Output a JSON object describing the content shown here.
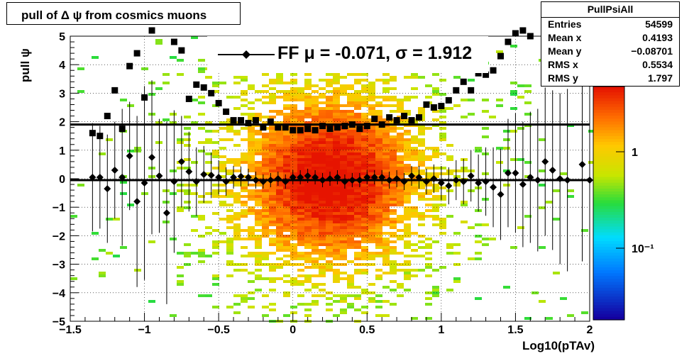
{
  "title": "pull of Δ ψ from cosmics muons",
  "stats": {
    "name": "PullPsiAll",
    "rows": [
      {
        "key": "Entries",
        "value": "54599"
      },
      {
        "key": "Mean x",
        "value": "0.4193"
      },
      {
        "key": "Mean y",
        "value": "−0.08701"
      },
      {
        "key": "RMS x",
        "value": "0.5534"
      },
      {
        "key": "RMS y",
        "value": "1.797"
      }
    ]
  },
  "legend": {
    "text": "FF μ = -0.071, σ =   1.912"
  },
  "axis": {
    "xlabel": "Log10(pTAv)",
    "ylabel": "pull ψ"
  },
  "colors": {
    "background": "#ffffff",
    "markers": "#000000"
  },
  "chart_data": {
    "type": "scatter",
    "xlim": [
      -1.5,
      2
    ],
    "ylim": [
      -5,
      5
    ],
    "x_ticks": [
      "−1.5",
      "−1",
      "−0.5",
      "0",
      "0.5",
      "1",
      "1.5",
      "2"
    ],
    "y_ticks": [
      "−5",
      "−4",
      "−3",
      "−2",
      "−1",
      "0",
      "1",
      "2",
      "3",
      "4",
      "5"
    ],
    "colorbar": {
      "scale": "log",
      "labels": [
        "1",
        "10⁻¹"
      ],
      "palette": "rainbow"
    },
    "background": "2D histogram PullPsiAll (pull ψ vs log10 pT), log color scale",
    "series": [
      {
        "marker": "diamond",
        "x": [
          -1.35,
          -1.3,
          -1.25,
          -1.2,
          -1.15,
          -1.1,
          -1.05,
          -1.0,
          -0.95,
          -0.9,
          -0.85,
          -0.8,
          -0.75,
          -0.7,
          -0.65,
          -0.6,
          -0.55,
          -0.5,
          -0.45,
          -0.4,
          -0.35,
          -0.3,
          -0.25,
          -0.2,
          -0.15,
          -0.1,
          -0.05,
          0.0,
          0.05,
          0.1,
          0.15,
          0.2,
          0.25,
          0.3,
          0.35,
          0.4,
          0.45,
          0.5,
          0.55,
          0.6,
          0.65,
          0.7,
          0.75,
          0.8,
          0.85,
          0.9,
          0.95,
          1.0,
          1.05,
          1.1,
          1.15,
          1.2,
          1.25,
          1.3,
          1.35,
          1.4,
          1.45,
          1.5,
          1.55,
          1.6,
          1.65,
          1.7,
          1.75,
          1.8,
          1.85,
          1.95,
          2.0
        ],
        "y": [
          0.05,
          0.05,
          -0.35,
          0.3,
          0.05,
          0.8,
          -0.8,
          -0.15,
          0.75,
          0.1,
          -1.2,
          -0.1,
          0.6,
          0.25,
          -0.1,
          0.15,
          0.12,
          0.05,
          -0.1,
          0.05,
          0.08,
          0.05,
          -0.05,
          -0.1,
          -0.05,
          0.0,
          -0.1,
          0.05,
          0.05,
          0.1,
          0.05,
          -0.05,
          0.0,
          0.05,
          -0.1,
          -0.05,
          -0.05,
          0.05,
          0.05,
          0.05,
          -0.05,
          0.0,
          -0.1,
          0.1,
          0.05,
          -0.1,
          0.0,
          -0.15,
          -0.25,
          -0.05,
          -0.1,
          0.1,
          -0.15,
          -0.1,
          -0.3,
          -0.55,
          0.2,
          0.2,
          -0.2,
          0.05,
          -0.05,
          0.6,
          0.3,
          0.0,
          -0.05,
          0.5,
          -0.05
        ],
        "yerr": [
          1.9,
          1.8,
          1.9,
          1.7,
          2.4,
          1.9,
          3.0,
          3.4,
          2.7,
          2.0,
          3.2,
          2.5,
          1.6,
          1.4,
          1.2,
          1.0,
          0.8,
          0.6,
          0.5,
          0.4,
          0.35,
          0.3,
          0.3,
          0.25,
          0.25,
          0.25,
          0.25,
          0.25,
          0.25,
          0.25,
          0.25,
          0.25,
          0.25,
          0.25,
          0.25,
          0.25,
          0.25,
          0.25,
          0.25,
          0.25,
          0.3,
          0.3,
          0.3,
          0.35,
          0.4,
          0.45,
          0.5,
          0.6,
          0.65,
          0.7,
          0.8,
          0.9,
          1.0,
          1.2,
          1.4,
          1.6,
          1.9,
          2.1,
          2.2,
          2.3,
          2.5,
          2.6,
          2.8,
          3.0,
          3.2,
          3.4,
          3.5
        ]
      },
      {
        "marker": "square",
        "x": [
          -1.35,
          -1.3,
          -1.25,
          -1.2,
          -1.15,
          -1.1,
          -1.05,
          -1.0,
          -0.95,
          -0.8,
          -0.75,
          -0.7,
          -0.65,
          -0.6,
          -0.55,
          -0.5,
          -0.45,
          -0.4,
          -0.35,
          -0.3,
          -0.25,
          -0.2,
          -0.15,
          -0.1,
          -0.05,
          0.0,
          0.05,
          0.1,
          0.15,
          0.2,
          0.25,
          0.3,
          0.35,
          0.4,
          0.45,
          0.5,
          0.55,
          0.6,
          0.65,
          0.7,
          0.75,
          0.8,
          0.85,
          0.9,
          0.95,
          1.0,
          1.05,
          1.1,
          1.15,
          1.2,
          1.25,
          1.3,
          1.35,
          1.4,
          1.45,
          1.5,
          1.55,
          1.6
        ],
        "y": [
          1.6,
          1.5,
          2.2,
          3.1,
          1.75,
          3.95,
          4.4,
          2.85,
          5.2,
          4.8,
          4.5,
          2.8,
          3.3,
          3.2,
          3.0,
          2.65,
          2.35,
          2.05,
          2.05,
          1.95,
          2.05,
          1.8,
          2.0,
          1.8,
          1.8,
          1.7,
          1.7,
          1.75,
          1.7,
          1.85,
          1.75,
          1.8,
          1.85,
          1.9,
          1.75,
          1.85,
          2.1,
          1.9,
          2.15,
          2.05,
          2.2,
          2.05,
          2.15,
          2.6,
          2.5,
          2.55,
          2.75,
          3.1,
          3.4,
          3.1,
          3.7,
          3.65,
          3.8,
          4.3,
          4.8,
          5.1,
          5.3,
          5.0
        ]
      }
    ],
    "fits": [
      {
        "label": "FF",
        "mean": -0.071,
        "sigma": 1.912,
        "y_levels": [
          -0.05,
          1.9
        ]
      }
    ]
  }
}
